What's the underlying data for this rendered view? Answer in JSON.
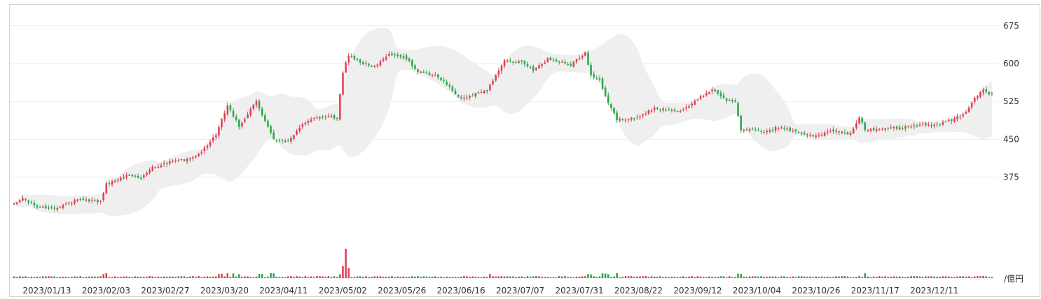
{
  "chart_data": {
    "type": "candlestick",
    "x_ticks": [
      "2023/01/13",
      "2023/02/03",
      "2023/02/27",
      "2023/03/20",
      "2023/04/11",
      "2023/05/02",
      "2023/05/26",
      "2023/06/16",
      "2023/07/07",
      "2023/07/31",
      "2023/08/22",
      "2023/09/12",
      "2023/10/04",
      "2023/10/26",
      "2023/11/17",
      "2023/12/11"
    ],
    "y_ticks": [
      375,
      450,
      525,
      600,
      675
    ],
    "ylim": [
      304,
      695
    ],
    "volume_unit_label": "/億円",
    "close_anchors": [
      [
        0,
        321
      ],
      [
        3,
        333
      ],
      [
        8,
        316
      ],
      [
        14,
        314
      ],
      [
        22,
        329
      ],
      [
        30,
        327
      ],
      [
        32,
        361
      ],
      [
        40,
        381
      ],
      [
        44,
        372
      ],
      [
        48,
        394
      ],
      [
        55,
        406
      ],
      [
        62,
        412
      ],
      [
        65,
        426
      ],
      [
        70,
        458
      ],
      [
        74,
        518
      ],
      [
        78,
        475
      ],
      [
        84,
        525
      ],
      [
        90,
        449
      ],
      [
        95,
        448
      ],
      [
        100,
        478
      ],
      [
        105,
        495
      ],
      [
        110,
        494
      ],
      [
        112,
        491
      ],
      [
        114,
        582
      ],
      [
        116,
        618
      ],
      [
        120,
        602
      ],
      [
        125,
        594
      ],
      [
        130,
        618
      ],
      [
        136,
        611
      ],
      [
        140,
        583
      ],
      [
        147,
        575
      ],
      [
        155,
        530
      ],
      [
        164,
        547
      ],
      [
        170,
        608
      ],
      [
        176,
        602
      ],
      [
        180,
        588
      ],
      [
        185,
        609
      ],
      [
        193,
        598
      ],
      [
        198,
        622
      ],
      [
        200,
        575
      ],
      [
        203,
        568
      ],
      [
        206,
        522
      ],
      [
        209,
        489
      ],
      [
        215,
        491
      ],
      [
        222,
        511
      ],
      [
        227,
        507
      ],
      [
        230,
        507
      ],
      [
        234,
        516
      ],
      [
        242,
        550
      ],
      [
        247,
        528
      ],
      [
        250,
        523
      ],
      [
        252,
        470
      ],
      [
        260,
        465
      ],
      [
        265,
        474
      ],
      [
        272,
        463
      ],
      [
        278,
        457
      ],
      [
        284,
        467
      ],
      [
        290,
        460
      ],
      [
        293,
        495
      ],
      [
        295,
        470
      ],
      [
        305,
        472
      ],
      [
        315,
        479
      ],
      [
        322,
        482
      ],
      [
        329,
        497
      ],
      [
        332,
        524
      ],
      [
        336,
        549
      ],
      [
        338,
        540
      ]
    ],
    "volume_spikes": {
      "114": 17,
      "115": 42,
      "116": 14
    }
  }
}
